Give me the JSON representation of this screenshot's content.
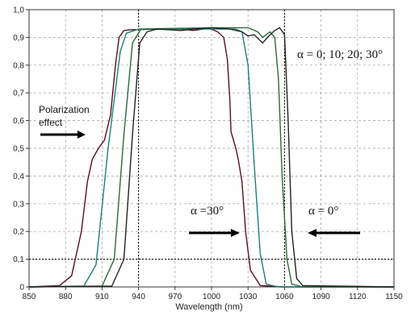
{
  "chart_data": {
    "type": "line",
    "xlabel": "Wavelength (nm)",
    "ylabel": "",
    "xlim": [
      850,
      1150
    ],
    "ylim": [
      0,
      1.0
    ],
    "x_ticks": [
      "850",
      "880",
      "910",
      "940",
      "970",
      "1000",
      "1030",
      "1060",
      "1090",
      "1120",
      "1150"
    ],
    "y_ticks": [
      "0",
      "0,1",
      "0,2",
      "0,3",
      "0,4",
      "0,5",
      "0,6",
      "0,7",
      "0,8",
      "0,9",
      "1,0"
    ],
    "grid": "dashed",
    "reference_lines": {
      "x": [
        940,
        1060
      ],
      "y": [
        0.1
      ]
    },
    "series": [
      {
        "color": "#5a1020",
        "points": [
          [
            850,
            0
          ],
          [
            875,
            0.005
          ],
          [
            885,
            0.04
          ],
          [
            893,
            0.2
          ],
          [
            898,
            0.38
          ],
          [
            902,
            0.46
          ],
          [
            907,
            0.5
          ],
          [
            912,
            0.53
          ],
          [
            917,
            0.62
          ],
          [
            921,
            0.8
          ],
          [
            924,
            0.9
          ],
          [
            928,
            0.925
          ],
          [
            935,
            0.928
          ],
          [
            960,
            0.93
          ],
          [
            975,
            0.93
          ],
          [
            985,
            0.925
          ],
          [
            990,
            0.928
          ],
          [
            995,
            0.932
          ],
          [
            1000,
            0.93
          ],
          [
            1005,
            0.92
          ],
          [
            1010,
            0.9
          ],
          [
            1013,
            0.82
          ],
          [
            1015,
            0.68
          ],
          [
            1016,
            0.56
          ],
          [
            1020,
            0.5
          ],
          [
            1022,
            0.46
          ],
          [
            1025,
            0.38
          ],
          [
            1028,
            0.2
          ],
          [
            1032,
            0.06
          ],
          [
            1040,
            0.005
          ],
          [
            1060,
            0
          ],
          [
            1150,
            0
          ]
        ]
      },
      {
        "color": "#1e7f78",
        "points": [
          [
            850,
            0
          ],
          [
            895,
            0.003
          ],
          [
            905,
            0.08
          ],
          [
            915,
            0.5
          ],
          [
            925,
            0.85
          ],
          [
            930,
            0.915
          ],
          [
            940,
            0.93
          ],
          [
            960,
            0.93
          ],
          [
            1000,
            0.93
          ],
          [
            1020,
            0.93
          ],
          [
            1025,
            0.92
          ],
          [
            1030,
            0.8
          ],
          [
            1035,
            0.45
          ],
          [
            1040,
            0.12
          ],
          [
            1045,
            0.01
          ],
          [
            1055,
            0
          ],
          [
            1150,
            0
          ]
        ]
      },
      {
        "color": "#2a6a3a",
        "points": [
          [
            850,
            0
          ],
          [
            910,
            0.003
          ],
          [
            920,
            0.1
          ],
          [
            928,
            0.55
          ],
          [
            935,
            0.88
          ],
          [
            942,
            0.93
          ],
          [
            960,
            0.932
          ],
          [
            1000,
            0.935
          ],
          [
            1030,
            0.935
          ],
          [
            1038,
            0.92
          ],
          [
            1042,
            0.9
          ],
          [
            1048,
            0.92
          ],
          [
            1052,
            0.9
          ],
          [
            1055,
            0.75
          ],
          [
            1058,
            0.4
          ],
          [
            1062,
            0.1
          ],
          [
            1066,
            0.01
          ],
          [
            1075,
            0
          ],
          [
            1150,
            0
          ]
        ]
      },
      {
        "color": "#222222",
        "points": [
          [
            850,
            0
          ],
          [
            918,
            0.003
          ],
          [
            928,
            0.1
          ],
          [
            935,
            0.55
          ],
          [
            941,
            0.88
          ],
          [
            947,
            0.92
          ],
          [
            955,
            0.93
          ],
          [
            975,
            0.925
          ],
          [
            985,
            0.93
          ],
          [
            1000,
            0.935
          ],
          [
            1015,
            0.93
          ],
          [
            1025,
            0.92
          ],
          [
            1030,
            0.905
          ],
          [
            1035,
            0.91
          ],
          [
            1042,
            0.88
          ],
          [
            1046,
            0.9
          ],
          [
            1052,
            0.925
          ],
          [
            1056,
            0.935
          ],
          [
            1060,
            0.91
          ],
          [
            1063,
            0.6
          ],
          [
            1066,
            0.2
          ],
          [
            1070,
            0.03
          ],
          [
            1075,
            0.005
          ],
          [
            1150,
            0
          ]
        ]
      }
    ],
    "annotations": [
      {
        "text": "α = 0; 10; 20; 30°"
      },
      {
        "text": "Polarization"
      },
      {
        "text": "effect"
      },
      {
        "text": "α =30°"
      },
      {
        "text": "α = 0°"
      }
    ],
    "arrows": [
      {
        "direction": "right",
        "label": "Polarization effect"
      },
      {
        "direction": "right",
        "label": "α =30°"
      },
      {
        "direction": "left",
        "label": "α = 0°"
      }
    ]
  }
}
